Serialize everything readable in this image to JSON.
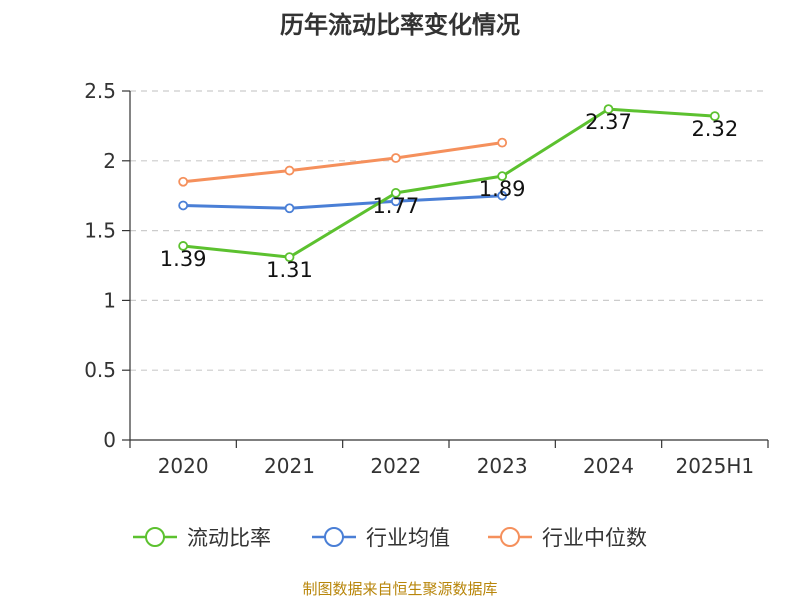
{
  "chart_data": {
    "type": "line",
    "title": "历年流动比率变化情况",
    "categories": [
      "2020",
      "2021",
      "2022",
      "2023",
      "2024",
      "2025H1"
    ],
    "ylim": [
      0,
      2.5
    ],
    "yticks": [
      "0",
      "0.5",
      "1",
      "1.5",
      "2",
      "2.5"
    ],
    "grid": true,
    "legend_position": "bottom",
    "series": [
      {
        "name": "流动比率",
        "color": "#5cc12f",
        "values": [
          1.39,
          1.31,
          1.77,
          1.89,
          2.37,
          2.32
        ],
        "labels": [
          "1.39",
          "1.31",
          "1.77",
          "1.89",
          "2.37",
          "2.32"
        ]
      },
      {
        "name": "行业均值",
        "color": "#4a7fd6",
        "values": [
          1.68,
          1.66,
          1.71,
          1.75,
          null,
          null
        ]
      },
      {
        "name": "行业中位数",
        "color": "#f5905c",
        "values": [
          1.85,
          1.93,
          2.02,
          2.13,
          null,
          null
        ]
      }
    ]
  },
  "source": "制图数据来自恒生聚源数据库"
}
